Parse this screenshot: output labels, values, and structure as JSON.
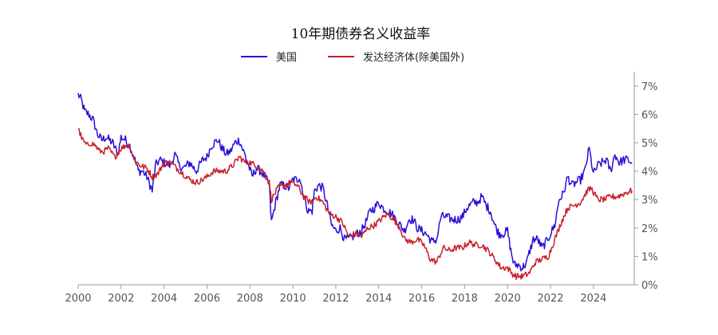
{
  "chart_data": {
    "type": "line",
    "title": "10年期债券名义收益率",
    "xlabel": "",
    "ylabel": "",
    "x_range": [
      2000,
      2025.9
    ],
    "ylim": [
      0,
      7.5
    ],
    "x_ticks": [
      "2000",
      "2002",
      "2004",
      "2006",
      "2008",
      "2010",
      "2012",
      "2014",
      "2016",
      "2018",
      "2020",
      "2022",
      "2024"
    ],
    "y_ticks": [
      "0%",
      "1%",
      "2%",
      "3%",
      "4%",
      "5%",
      "6%",
      "7%"
    ],
    "y_unit": "%",
    "grid": false,
    "legend_position": "top-center",
    "series": [
      {
        "name": "美国",
        "color": "#2b0fd6",
        "x": [
          2000.0,
          2000.15,
          2000.3,
          2000.5,
          2000.7,
          2000.9,
          2001.1,
          2001.3,
          2001.6,
          2001.85,
          2002.0,
          2002.2,
          2002.4,
          2002.6,
          2002.8,
          2003.0,
          2003.2,
          2003.45,
          2003.6,
          2003.8,
          2004.0,
          2004.3,
          2004.5,
          2004.7,
          2004.9,
          2005.2,
          2005.5,
          2005.8,
          2006.0,
          2006.2,
          2006.5,
          2006.7,
          2006.9,
          2007.1,
          2007.3,
          2007.5,
          2007.7,
          2007.9,
          2008.1,
          2008.3,
          2008.5,
          2008.7,
          2008.9,
          2009.0,
          2009.2,
          2009.4,
          2009.6,
          2009.8,
          2010.0,
          2010.2,
          2010.3,
          2010.5,
          2010.7,
          2010.9,
          2011.0,
          2011.2,
          2011.4,
          2011.6,
          2011.8,
          2012.0,
          2012.2,
          2012.4,
          2012.6,
          2012.8,
          2013.0,
          2013.2,
          2013.4,
          2013.6,
          2013.8,
          2014.0,
          2014.2,
          2014.4,
          2014.6,
          2014.8,
          2015.0,
          2015.2,
          2015.4,
          2015.6,
          2015.8,
          2016.0,
          2016.2,
          2016.5,
          2016.7,
          2016.9,
          2017.1,
          2017.4,
          2017.7,
          2017.9,
          2018.1,
          2018.4,
          2018.6,
          2018.8,
          2019.0,
          2019.2,
          2019.4,
          2019.6,
          2019.8,
          2020.0,
          2020.15,
          2020.3,
          2020.5,
          2020.7,
          2020.9,
          2021.0,
          2021.2,
          2021.4,
          2021.6,
          2021.8,
          2022.0,
          2022.2,
          2022.4,
          2022.6,
          2022.8,
          2023.0,
          2023.2,
          2023.4,
          2023.6,
          2023.8,
          2024.0,
          2024.2,
          2024.4,
          2024.6,
          2024.8,
          2025.0,
          2025.2,
          2025.4,
          2025.6,
          2025.8
        ],
        "values": [
          6.7,
          6.5,
          6.1,
          6.0,
          5.8,
          5.3,
          5.1,
          5.2,
          5.0,
          4.6,
          5.2,
          5.1,
          4.9,
          4.5,
          4.0,
          4.0,
          3.8,
          3.3,
          4.2,
          4.4,
          4.3,
          4.2,
          4.6,
          4.2,
          4.1,
          4.3,
          4.0,
          4.4,
          4.5,
          4.9,
          5.1,
          4.8,
          4.6,
          4.7,
          5.0,
          5.1,
          4.7,
          4.3,
          3.8,
          4.1,
          4.0,
          3.8,
          3.5,
          2.2,
          2.9,
          3.5,
          3.5,
          3.4,
          3.7,
          3.7,
          3.8,
          3.2,
          2.6,
          2.6,
          3.3,
          3.5,
          3.4,
          2.8,
          2.1,
          1.9,
          2.0,
          1.6,
          1.6,
          1.7,
          1.8,
          1.9,
          2.2,
          2.6,
          2.7,
          2.9,
          2.7,
          2.6,
          2.5,
          2.3,
          2.1,
          1.9,
          2.3,
          2.3,
          2.0,
          1.9,
          1.8,
          1.5,
          1.6,
          2.4,
          2.4,
          2.3,
          2.3,
          2.4,
          2.7,
          2.9,
          2.9,
          3.1,
          2.8,
          2.6,
          2.1,
          1.8,
          1.8,
          1.9,
          1.2,
          0.7,
          0.7,
          0.6,
          0.8,
          1.1,
          1.6,
          1.6,
          1.3,
          1.5,
          1.8,
          2.1,
          3.0,
          3.2,
          3.8,
          3.5,
          3.6,
          3.7,
          4.0,
          4.8,
          3.9,
          4.2,
          4.3,
          4.4,
          4.0,
          4.6,
          4.3,
          4.4,
          4.4,
          4.3
        ],
        "note_not_rendered": false
      },
      {
        "name": "发达经济体(除美国外)",
        "color": "#c8202a",
        "x": [
          2000.0,
          2000.2,
          2000.4,
          2000.6,
          2000.8,
          2001.0,
          2001.2,
          2001.4,
          2001.7,
          2002.0,
          2002.2,
          2002.4,
          2002.6,
          2002.9,
          2003.2,
          2003.45,
          2003.7,
          2004.0,
          2004.3,
          2004.6,
          2004.9,
          2005.2,
          2005.5,
          2005.8,
          2006.0,
          2006.3,
          2006.6,
          2006.9,
          2007.2,
          2007.5,
          2007.8,
          2008.0,
          2008.3,
          2008.6,
          2008.9,
          2009.0,
          2009.3,
          2009.6,
          2009.9,
          2010.2,
          2010.5,
          2010.8,
          2011.1,
          2011.4,
          2011.7,
          2012.0,
          2012.3,
          2012.6,
          2012.9,
          2013.2,
          2013.5,
          2013.8,
          2014.1,
          2014.4,
          2014.7,
          2015.0,
          2015.2,
          2015.5,
          2015.8,
          2016.1,
          2016.4,
          2016.7,
          2017.0,
          2017.3,
          2017.6,
          2017.9,
          2018.2,
          2018.5,
          2018.8,
          2019.1,
          2019.4,
          2019.7,
          2020.0,
          2020.2,
          2020.4,
          2020.7,
          2021.0,
          2021.3,
          2021.6,
          2021.9,
          2022.2,
          2022.5,
          2022.8,
          2023.1,
          2023.4,
          2023.7,
          2023.9,
          2024.2,
          2024.5,
          2024.8,
          2025.1,
          2025.4,
          2025.7,
          2025.8
        ],
        "values": [
          5.5,
          5.1,
          4.9,
          5.0,
          4.9,
          4.7,
          4.7,
          4.8,
          4.5,
          4.8,
          4.9,
          4.9,
          4.4,
          4.2,
          4.1,
          3.8,
          3.9,
          4.3,
          4.3,
          4.1,
          3.9,
          3.7,
          3.6,
          3.7,
          3.8,
          4.0,
          4.0,
          4.0,
          4.2,
          4.5,
          4.3,
          4.3,
          4.2,
          4.0,
          3.6,
          3.0,
          3.4,
          3.5,
          3.6,
          3.5,
          3.1,
          2.9,
          3.1,
          2.9,
          2.5,
          2.4,
          2.2,
          1.7,
          1.8,
          1.7,
          2.0,
          2.1,
          2.3,
          2.5,
          2.3,
          2.0,
          1.6,
          1.5,
          1.6,
          1.4,
          0.9,
          0.8,
          1.3,
          1.2,
          1.3,
          1.3,
          1.5,
          1.4,
          1.4,
          1.2,
          0.9,
          0.6,
          0.6,
          0.4,
          0.3,
          0.3,
          0.4,
          0.8,
          0.9,
          1.0,
          1.6,
          2.2,
          2.7,
          2.8,
          2.9,
          3.3,
          3.4,
          3.0,
          3.0,
          3.1,
          3.1,
          3.2,
          3.3,
          3.3
        ]
      }
    ]
  }
}
